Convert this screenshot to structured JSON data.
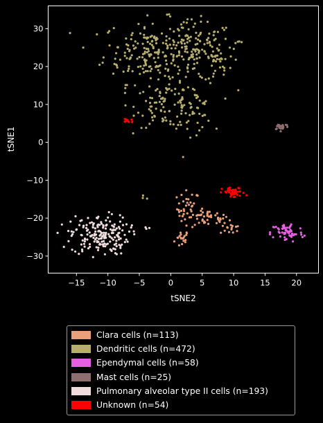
{
  "chart_data": {
    "type": "scatter",
    "title": "",
    "xlabel": "tSNE2",
    "ylabel": "tSNE1",
    "xlim": [
      -19.5,
      23.5
    ],
    "ylim": [
      -34.5,
      36
    ],
    "xticks": [
      -15,
      -10,
      -5,
      0,
      5,
      10,
      15,
      20
    ],
    "yticks": [
      -30,
      -20,
      -10,
      0,
      10,
      20,
      30
    ],
    "grid": false,
    "legend_position": "below",
    "background": "#000000",
    "series": [
      {
        "name": "Clara cells (n=113)",
        "color": "#e9a07a",
        "count": 113,
        "clusters": [
          {
            "cx": 1.8,
            "cy": -25.5,
            "sx": 0.6,
            "sy": 1.2,
            "n": 18
          },
          {
            "cx": 2.8,
            "cy": -17.5,
            "sx": 0.9,
            "sy": 2.4,
            "n": 40
          },
          {
            "cx": 6.0,
            "cy": -20.0,
            "sx": 1.6,
            "sy": 1.0,
            "n": 40
          },
          {
            "cx": 9.5,
            "cy": -22.8,
            "sx": 0.8,
            "sy": 0.7,
            "n": 15
          }
        ]
      },
      {
        "name": "Dendritic cells (n=472)",
        "color": "#b7ad6c",
        "count": 472,
        "clusters": [
          {
            "cx": -3.5,
            "cy": 24,
            "sx": 3.6,
            "sy": 4.2,
            "n": 180
          },
          {
            "cx": 4.0,
            "cy": 24,
            "sx": 3.0,
            "sy": 4.0,
            "n": 140
          },
          {
            "cx": -1.0,
            "cy": 10,
            "sx": 2.2,
            "sy": 3.0,
            "n": 70
          },
          {
            "cx": 3.0,
            "cy": 9,
            "sx": 1.8,
            "sy": 3.2,
            "n": 60
          },
          {
            "cx": 8.0,
            "cy": 21,
            "sx": 1.0,
            "sy": 1.8,
            "n": 15
          },
          {
            "cx": 10.5,
            "cy": 26.5,
            "sx": 0.6,
            "sy": 0.3,
            "n": 4
          },
          {
            "cx": -4.5,
            "cy": -15,
            "sx": 0.5,
            "sy": 0.6,
            "n": 3
          }
        ]
      },
      {
        "name": "Ependymal cells (n=58)",
        "color": "#e65fe3",
        "count": 58,
        "clusters": [
          {
            "cx": 18.5,
            "cy": -23.8,
            "sx": 1.3,
            "sy": 1.3,
            "n": 58
          }
        ]
      },
      {
        "name": "Mast cells (n=25)",
        "color": "#8c6f6e",
        "count": 25,
        "clusters": [
          {
            "cx": 17.6,
            "cy": 4.2,
            "sx": 0.6,
            "sy": 0.45,
            "n": 25
          }
        ]
      },
      {
        "name": "Pulmonary alveolar type II cells (n=193)",
        "color": "#efdcdc",
        "count": 193,
        "clusters": [
          {
            "cx": -11.3,
            "cy": -24.5,
            "sx": 2.3,
            "sy": 2.6,
            "n": 190
          },
          {
            "cx": -3.8,
            "cy": -22.5,
            "sx": 0.4,
            "sy": 0.4,
            "n": 3
          }
        ]
      },
      {
        "name": "Unknown (n=54)",
        "color": "#ff0000",
        "count": 54,
        "clusters": [
          {
            "cx": 10.0,
            "cy": -13.3,
            "sx": 0.9,
            "sy": 0.7,
            "n": 42
          },
          {
            "cx": -6.8,
            "cy": 5.8,
            "sx": 0.5,
            "sy": 0.35,
            "n": 12
          }
        ]
      }
    ]
  }
}
